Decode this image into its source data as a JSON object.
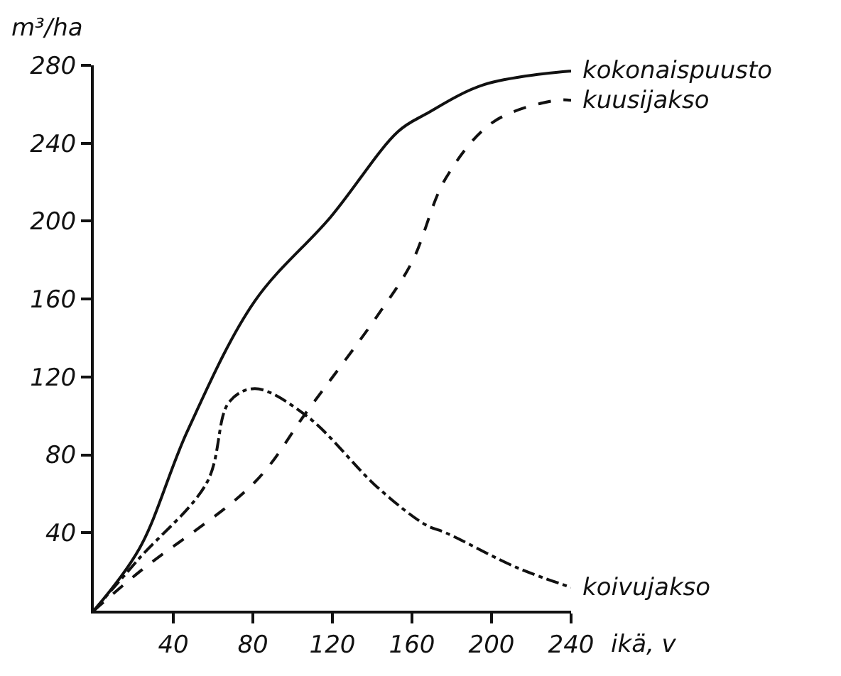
{
  "chart_data": {
    "type": "line",
    "xlabel": "ikä, v",
    "ylabel": "m³/ha",
    "xlim": [
      0,
      240
    ],
    "ylim": [
      0,
      280
    ],
    "xticks": [
      40,
      80,
      120,
      160,
      200,
      240
    ],
    "yticks": [
      40,
      80,
      120,
      160,
      200,
      240,
      280
    ],
    "legend": false,
    "marker": "none",
    "series": [
      {
        "name": "kokonaispuusto",
        "color": "#111111",
        "line_style": "solid",
        "x": [
          0,
          23,
          47,
          81,
          119,
          153,
          167,
          196,
          239,
          240
        ],
        "values": [
          0,
          32,
          92,
          159,
          202,
          246,
          255,
          270,
          277,
          277
        ]
      },
      {
        "name": "kuusijakso",
        "color": "#111111",
        "line_style": "dashed",
        "x": [
          0,
          23,
          81,
          107,
          143,
          160,
          177,
          201,
          232,
          240
        ],
        "values": [
          0,
          20,
          66,
          102,
          152,
          179,
          222,
          251,
          262,
          262
        ]
      },
      {
        "name": "koivujakso",
        "color": "#111111",
        "line_style": "dashdot",
        "x": [
          0,
          23,
          57,
          68,
          81,
          107,
          143,
          167,
          177,
          213,
          240
        ],
        "values": [
          0,
          27,
          66,
          107,
          114,
          100,
          63,
          44,
          40,
          22,
          12
        ]
      }
    ]
  }
}
